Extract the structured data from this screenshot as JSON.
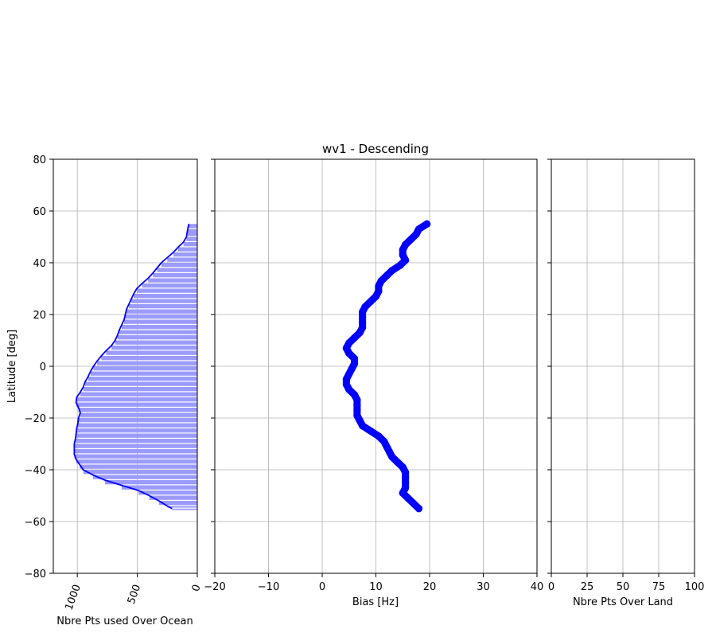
{
  "title": "wv1 - Descending",
  "chart_data": [
    {
      "type": "area",
      "xlabel": "Nbre Pts used Over Ocean",
      "ylabel": "Latitude [deg]",
      "xlim": [
        1200,
        0
      ],
      "ylim": [
        -80,
        80
      ],
      "xticks": [
        "1000",
        "500",
        "0"
      ],
      "xtick_values": [
        1000,
        500,
        0
      ],
      "yticks": [
        "80",
        "60",
        "40",
        "20",
        "0",
        "−20",
        "−40",
        "−60",
        "−80"
      ],
      "ytick_values": [
        80,
        60,
        40,
        20,
        0,
        -20,
        -40,
        -60,
        -80
      ],
      "grid": true,
      "color": "#0000ff",
      "fill_color": "#9b9bff",
      "series": [
        {
          "lat": [
            55,
            53,
            50,
            48,
            46,
            44,
            42,
            40,
            38,
            36,
            34,
            32,
            30,
            28,
            26,
            24,
            22,
            20,
            18,
            16,
            14,
            12,
            10,
            8,
            6,
            4,
            2,
            0,
            -2,
            -4,
            -6,
            -8,
            -10,
            -12,
            -14,
            -16,
            -18,
            -20,
            -22,
            -24,
            -26,
            -28,
            -30,
            -32,
            -34,
            -36,
            -38,
            -40,
            -42,
            -44,
            -46,
            -48,
            -50,
            -52,
            -54,
            -55
          ],
          "count": [
            70,
            80,
            90,
            115,
            160,
            200,
            250,
            300,
            335,
            370,
            410,
            460,
            505,
            530,
            550,
            570,
            590,
            600,
            610,
            630,
            650,
            665,
            685,
            715,
            760,
            800,
            835,
            865,
            890,
            910,
            935,
            950,
            975,
            1005,
            1010,
            990,
            975,
            990,
            995,
            1005,
            1010,
            1015,
            1025,
            1025,
            1025,
            1010,
            980,
            950,
            870,
            770,
            630,
            490,
            400,
            320,
            250,
            210
          ]
        }
      ]
    },
    {
      "type": "scatter",
      "title": "wv1 - Descending",
      "xlabel": "Bias [Hz]",
      "xlim": [
        -20,
        40
      ],
      "ylim": [
        -80,
        80
      ],
      "xticks": [
        "−20",
        "−10",
        "0",
        "10",
        "20",
        "30",
        "40"
      ],
      "xtick_values": [
        -20,
        -10,
        0,
        10,
        20,
        30,
        40
      ],
      "grid": true,
      "color": "#0000ff",
      "series": [
        {
          "lat": [
            55,
            53,
            51,
            49,
            47,
            45,
            43,
            41,
            39,
            37,
            35,
            33,
            31,
            29,
            27,
            25,
            23,
            21,
            19,
            17,
            15,
            13,
            11,
            9,
            7,
            5,
            3,
            1,
            -1,
            -3,
            -5,
            -7,
            -9,
            -11,
            -13,
            -15,
            -17,
            -19,
            -21,
            -23,
            -25,
            -27,
            -29,
            -31,
            -33,
            -35,
            -37,
            -39,
            -41,
            -43,
            -45,
            -47,
            -49,
            -51,
            -53,
            -55
          ],
          "bias": [
            19.5,
            18.0,
            17.5,
            16.5,
            15.5,
            15.0,
            15.0,
            15.5,
            14.5,
            13.0,
            12.0,
            11.0,
            10.5,
            10.5,
            10.0,
            9.0,
            8.0,
            7.5,
            7.5,
            7.5,
            7.5,
            7.0,
            6.0,
            5.0,
            4.5,
            5.0,
            6.0,
            6.0,
            5.5,
            5.0,
            4.5,
            4.5,
            5.0,
            6.0,
            6.5,
            6.5,
            6.5,
            6.5,
            7.0,
            7.5,
            9.0,
            10.5,
            11.5,
            12.0,
            12.5,
            13.0,
            14.0,
            15.0,
            15.5,
            15.5,
            15.5,
            15.5,
            15.0,
            16.0,
            17.0,
            18.0
          ]
        }
      ]
    },
    {
      "type": "line",
      "xlabel": "Nbre Pts Over Land",
      "xlim": [
        0,
        100
      ],
      "ylim": [
        -80,
        80
      ],
      "xticks": [
        "0",
        "25",
        "50",
        "75",
        "100"
      ],
      "xtick_values": [
        0,
        25,
        50,
        75,
        100
      ],
      "grid": true,
      "series": []
    }
  ]
}
